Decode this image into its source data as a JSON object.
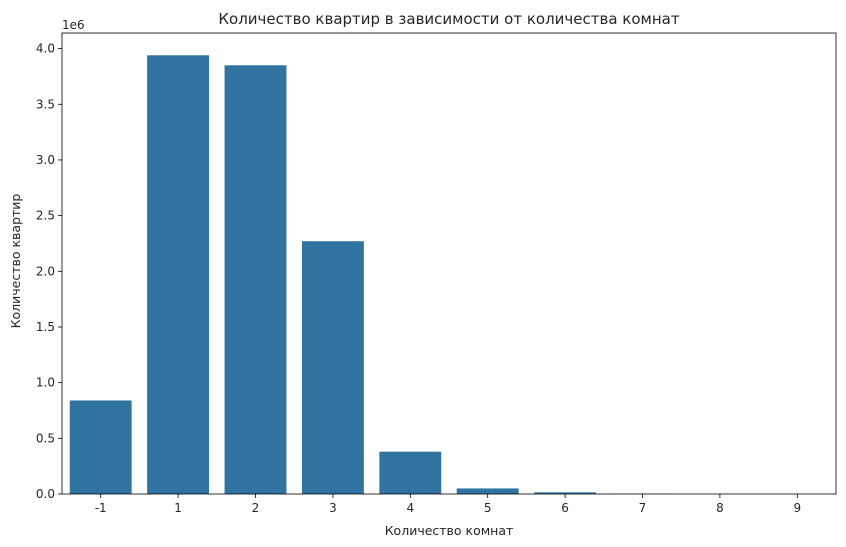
{
  "chart_data": {
    "type": "bar",
    "title": "Количество квартир в зависимости от количества комнат",
    "xlabel": "Количество комнат",
    "ylabel": "Количество квартир",
    "y_offset_label": "1e6",
    "categories": [
      "-1",
      "1",
      "2",
      "3",
      "4",
      "5",
      "6",
      "7",
      "8",
      "9"
    ],
    "values": [
      840000,
      3940000,
      3850000,
      2270000,
      380000,
      50000,
      15000,
      2000,
      500,
      200
    ],
    "ylim": [
      0,
      4140000
    ],
    "y_ticks": [
      0,
      500000,
      1000000,
      1500000,
      2000000,
      2500000,
      3000000,
      3500000,
      4000000
    ],
    "y_tick_labels": [
      "0.0",
      "0.5",
      "1.0",
      "1.5",
      "2.0",
      "2.5",
      "3.0",
      "3.5",
      "4.0"
    ],
    "bar_color": "#3274a1",
    "grid": false,
    "legend": "none"
  }
}
